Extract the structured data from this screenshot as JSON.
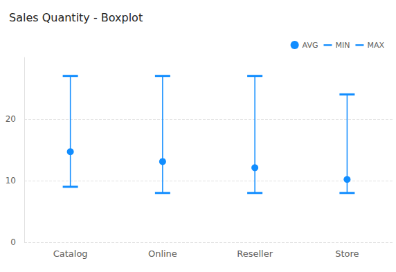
{
  "chart_data": {
    "type": "boxplot",
    "title": "Sales Quantity - Boxplot",
    "categories": [
      "Catalog",
      "Online",
      "Reseller",
      "Store"
    ],
    "series": [
      {
        "name": "AVG",
        "marker": "circle",
        "color": "#118DFF",
        "values": [
          14.7,
          13.1,
          12.1,
          10.2
        ]
      },
      {
        "name": "MIN",
        "marker": "line",
        "color": "#118DFF",
        "values": [
          9,
          8,
          8,
          8
        ]
      },
      {
        "name": "MAX",
        "marker": "line",
        "color": "#118DFF",
        "values": [
          27,
          27,
          27,
          24
        ]
      }
    ],
    "ylim": [
      0,
      30
    ],
    "yticks": [
      0,
      10,
      20
    ],
    "grid": true,
    "legend": "top-right"
  }
}
